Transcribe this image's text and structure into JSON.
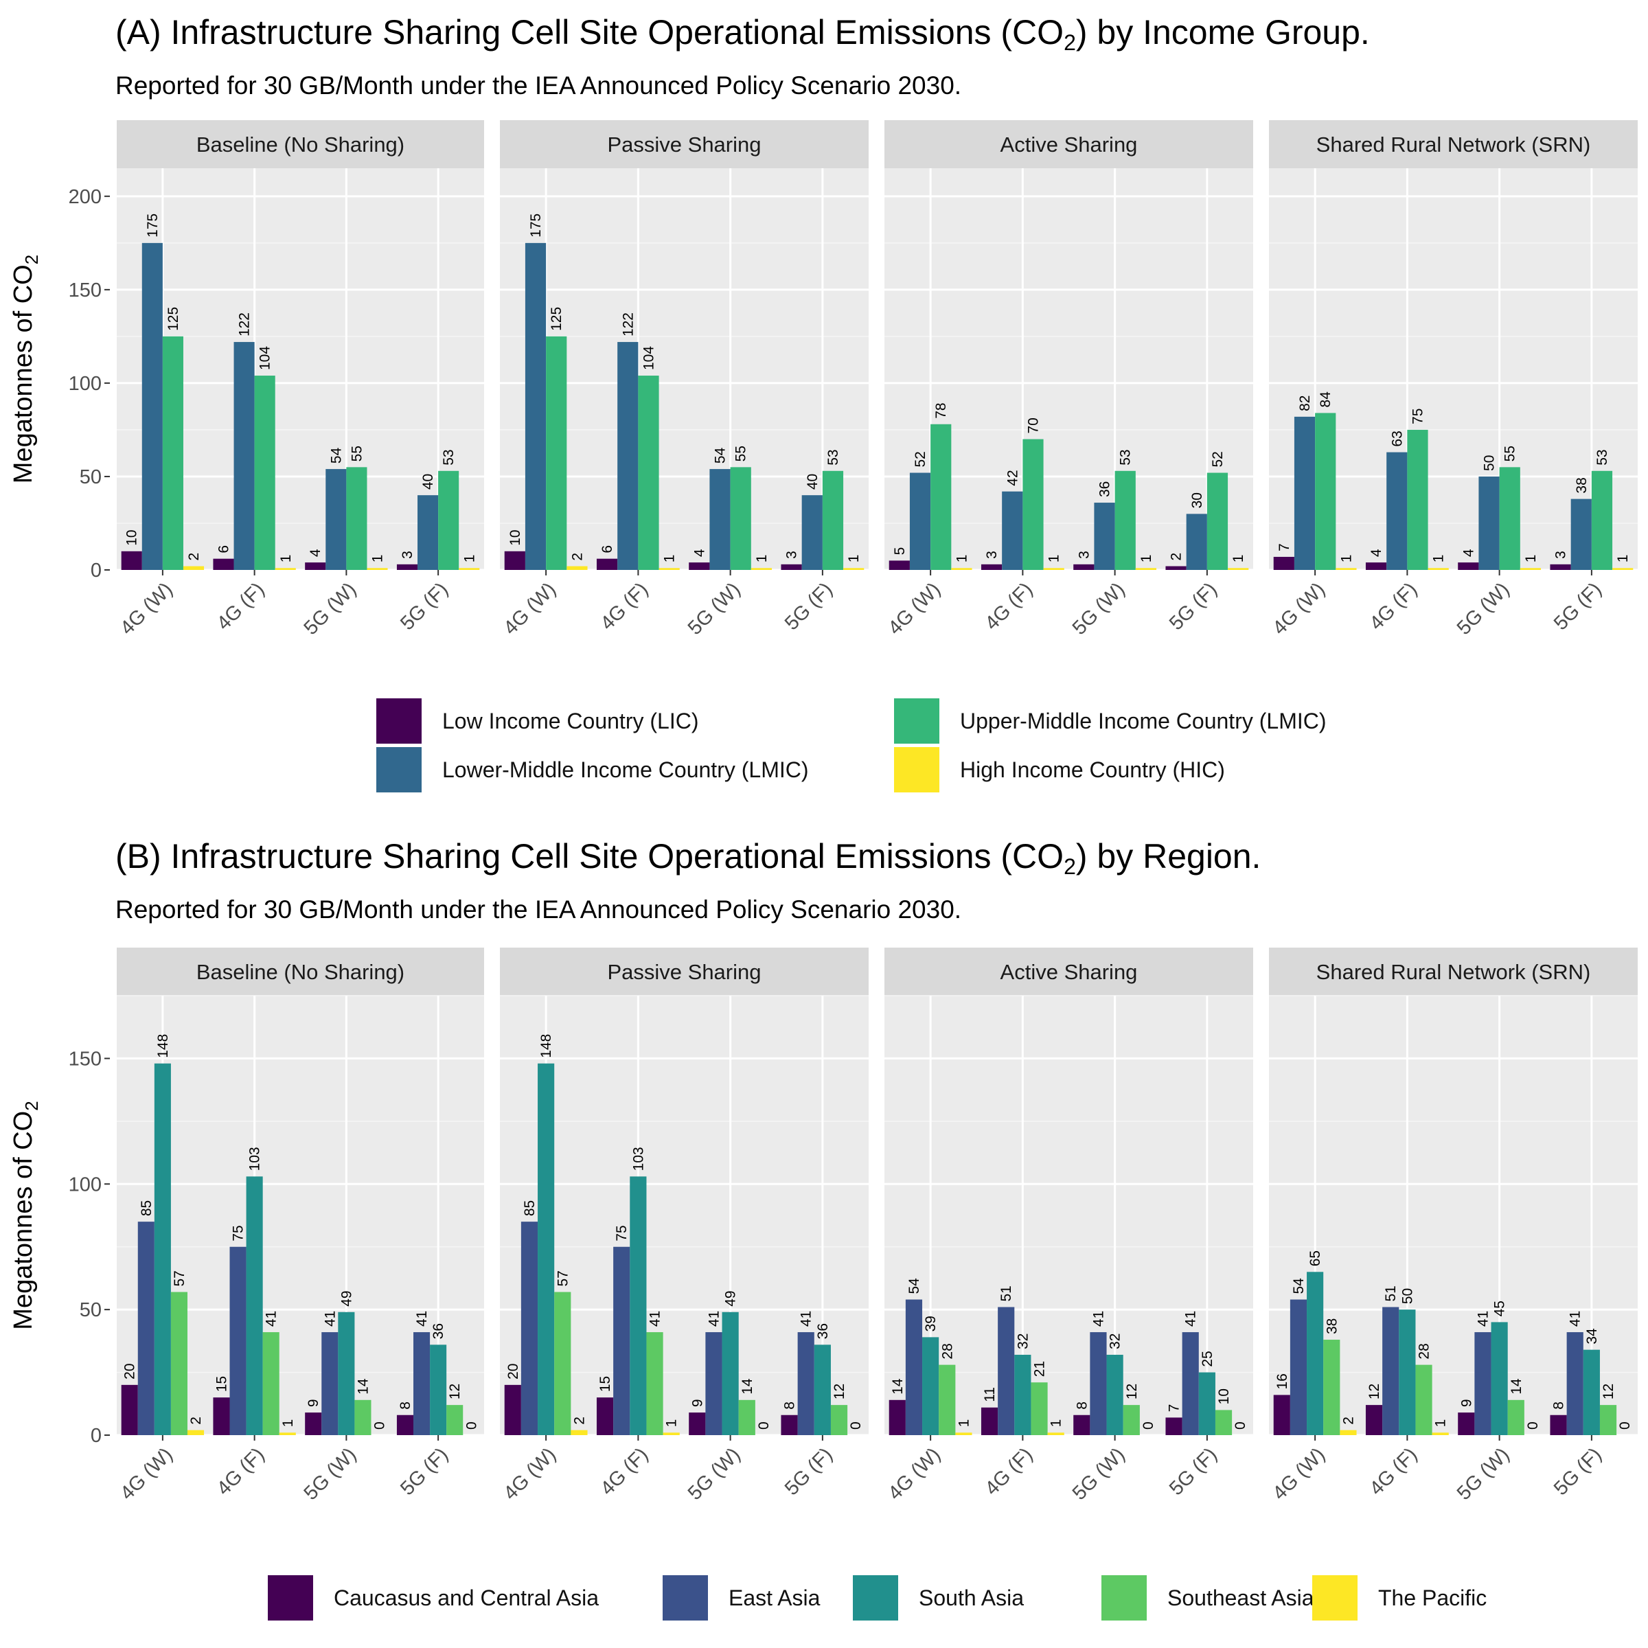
{
  "chart_data": [
    {
      "type": "bar",
      "title_prefix": "(A) Infrastructure Sharing Cell Site Operational Emissions (CO",
      "title_sub": "2",
      "title_suffix": ") by Income Group.",
      "subtitle": "Reported for 30 GB/Month under the IEA Announced Policy Scenario 2030.",
      "ylabel_prefix": "Megatonnes of CO",
      "ylabel_sub": "2",
      "ylim": [
        0,
        215
      ],
      "yticks": [
        0,
        50,
        100,
        150,
        200
      ],
      "grid": true,
      "legend_position": "bottom",
      "categories": [
        "4G (W)",
        "4G (F)",
        "5G (W)",
        "5G (F)"
      ],
      "facets": [
        "Baseline (No Sharing)",
        "Passive Sharing",
        "Active Sharing",
        "Shared Rural Network (SRN)"
      ],
      "series": [
        {
          "name": "Low Income Country (LIC)",
          "color": "#440154",
          "values": [
            [
              10,
              6,
              4,
              3
            ],
            [
              10,
              6,
              4,
              3
            ],
            [
              5,
              3,
              3,
              2
            ],
            [
              7,
              4,
              4,
              3
            ]
          ]
        },
        {
          "name": "Lower-Middle Income Country (LMIC)",
          "color": "#31688e",
          "values": [
            [
              175,
              122,
              54,
              40
            ],
            [
              175,
              122,
              54,
              40
            ],
            [
              52,
              42,
              36,
              30
            ],
            [
              82,
              63,
              50,
              38
            ]
          ]
        },
        {
          "name": "Upper-Middle Income Country (LMIC)",
          "color": "#35b779",
          "values": [
            [
              125,
              104,
              55,
              53
            ],
            [
              125,
              104,
              55,
              53
            ],
            [
              78,
              70,
              53,
              52
            ],
            [
              84,
              75,
              55,
              53
            ]
          ]
        },
        {
          "name": "High Income Country (HIC)",
          "color": "#fde725",
          "values": [
            [
              2,
              1,
              1,
              1
            ],
            [
              2,
              1,
              1,
              1
            ],
            [
              1,
              1,
              1,
              1
            ],
            [
              1,
              1,
              1,
              1
            ]
          ]
        }
      ]
    },
    {
      "type": "bar",
      "title_prefix": "(B) Infrastructure Sharing Cell Site Operational Emissions (CO",
      "title_sub": "2",
      "title_suffix": ") by Region.",
      "subtitle": "Reported for 30 GB/Month under the IEA Announced Policy Scenario 2030.",
      "ylabel_prefix": "Megatonnes of CO",
      "ylabel_sub": "2",
      "ylim": [
        0,
        175
      ],
      "yticks": [
        0,
        50,
        100,
        150
      ],
      "grid": true,
      "legend_position": "bottom",
      "categories": [
        "4G (W)",
        "4G (F)",
        "5G (W)",
        "5G (F)"
      ],
      "facets": [
        "Baseline (No Sharing)",
        "Passive Sharing",
        "Active Sharing",
        "Shared Rural Network (SRN)"
      ],
      "series": [
        {
          "name": "Caucasus and Central Asia",
          "color": "#440154",
          "values": [
            [
              20,
              15,
              9,
              8
            ],
            [
              20,
              15,
              9,
              8
            ],
            [
              14,
              11,
              8,
              7
            ],
            [
              16,
              12,
              9,
              8
            ]
          ]
        },
        {
          "name": "East Asia",
          "color": "#3b528b",
          "values": [
            [
              85,
              75,
              41,
              41
            ],
            [
              85,
              75,
              41,
              41
            ],
            [
              54,
              51,
              41,
              41
            ],
            [
              54,
              51,
              41,
              41
            ]
          ]
        },
        {
          "name": "South Asia",
          "color": "#21908d",
          "values": [
            [
              148,
              103,
              49,
              36
            ],
            [
              148,
              103,
              49,
              36
            ],
            [
              39,
              32,
              32,
              25
            ],
            [
              65,
              50,
              45,
              34
            ]
          ]
        },
        {
          "name": "Southeast Asia",
          "color": "#5dc963",
          "values": [
            [
              57,
              41,
              14,
              12
            ],
            [
              57,
              41,
              14,
              12
            ],
            [
              28,
              21,
              12,
              10
            ],
            [
              38,
              28,
              14,
              12
            ]
          ]
        },
        {
          "name": "The Pacific",
          "color": "#fde725",
          "values": [
            [
              2,
              1,
              0,
              0
            ],
            [
              2,
              1,
              0,
              0
            ],
            [
              1,
              1,
              0,
              0
            ],
            [
              2,
              1,
              0,
              0
            ]
          ]
        }
      ]
    }
  ]
}
